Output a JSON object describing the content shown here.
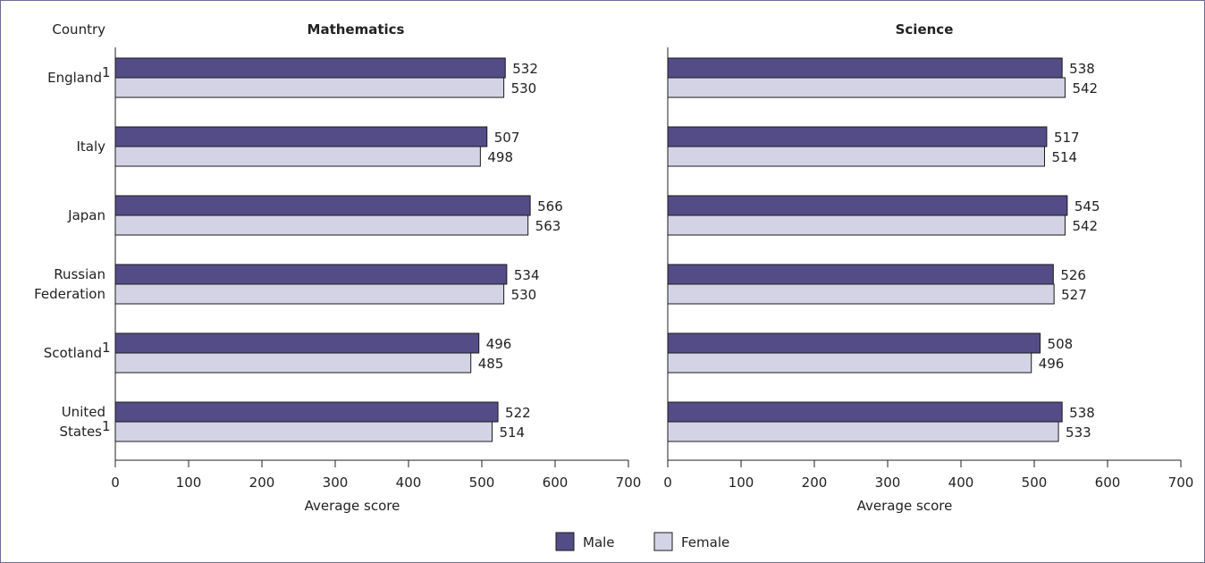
{
  "chart_data": {
    "type": "bar",
    "orientation": "horizontal",
    "country_header": "Country",
    "categories": [
      {
        "lines": [
          "England"
        ],
        "sup": "1"
      },
      {
        "lines": [
          "Italy"
        ],
        "sup": ""
      },
      {
        "lines": [
          "Japan"
        ],
        "sup": ""
      },
      {
        "lines": [
          "Russian",
          "Federation"
        ],
        "sup": ""
      },
      {
        "lines": [
          "Scotland"
        ],
        "sup": "1"
      },
      {
        "lines": [
          "United",
          "States"
        ],
        "sup": "1"
      }
    ],
    "legend": [
      {
        "label": "Male",
        "color": "#544c86"
      },
      {
        "label": "Female",
        "color": "#d4d3e6"
      }
    ],
    "panels": [
      {
        "title": "Mathematics",
        "xlabel": "Average score",
        "xlim": [
          0,
          700
        ],
        "xticks": [
          "0",
          "100",
          "200",
          "300",
          "400",
          "500",
          "600",
          "700"
        ],
        "series": [
          {
            "name": "Male",
            "values": [
              532,
              507,
              566,
              534,
              496,
              522
            ]
          },
          {
            "name": "Female",
            "values": [
              530,
              498,
              563,
              530,
              485,
              514
            ]
          }
        ]
      },
      {
        "title": "Science",
        "xlabel": "Average score",
        "xlim": [
          0,
          700
        ],
        "xticks": [
          "0",
          "100",
          "200",
          "300",
          "400",
          "500",
          "600",
          "700"
        ],
        "series": [
          {
            "name": "Male",
            "values": [
              538,
              517,
              545,
              526,
              508,
              538
            ]
          },
          {
            "name": "Female",
            "values": [
              542,
              514,
              542,
              527,
              496,
              533
            ]
          }
        ]
      }
    ]
  }
}
